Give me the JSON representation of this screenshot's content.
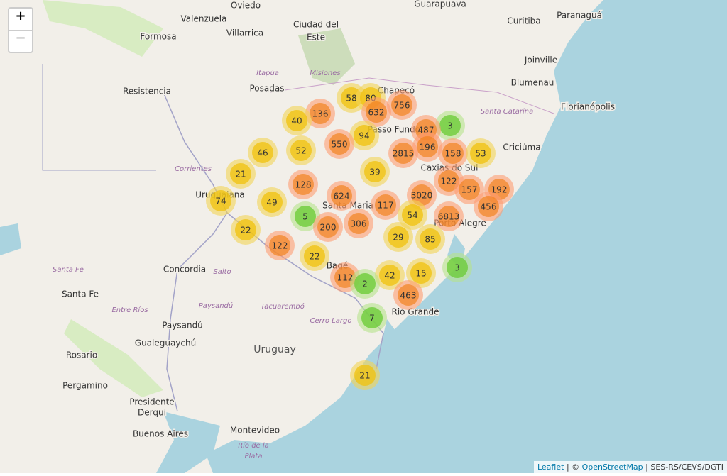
{
  "zoom": {
    "in": "+",
    "out": "−"
  },
  "places": [
    "Oviedo",
    "Guarapuava",
    "Paranaguá",
    "Valenzuela",
    "Ciudad del",
    "Este",
    "Curitiba",
    "Formosa",
    "Villarrica",
    "Joinville",
    "Blumenau",
    "Resistencia",
    "Posadas",
    "Chapecó",
    "Florianópolis",
    "Passo Fundo",
    "Criciúma",
    "Caxias do Sul",
    "Uruguaiana",
    "Santa Maria",
    "Porto Alegre",
    "Concordia",
    "Bagé",
    "Santa Fe",
    "Rio Grande",
    "Paysandú",
    "Gualeguaychú",
    "Rosario",
    "Pergamino",
    "Presidente",
    "Derqui",
    "Buenos Aires",
    "Montevideo"
  ],
  "regions": [
    "Itapúa",
    "Misiones",
    "Santa Catarina",
    "Corrientes",
    "Santa Fe",
    "Salto",
    "Entre Ríos",
    "Paysandú",
    "Tacuarembó",
    "Cerro Largo",
    "Río de la",
    "Plata"
  ],
  "countries": [
    "Uruguay"
  ],
  "clusters": [
    58,
    80,
    756,
    136,
    632,
    3,
    40,
    487,
    94,
    550,
    196,
    46,
    52,
    2815,
    158,
    53,
    39,
    21,
    122,
    128,
    3020,
    157,
    192,
    624,
    74,
    49,
    117,
    456,
    54,
    6813,
    5,
    200,
    306,
    22,
    29,
    85,
    122,
    22,
    3,
    112,
    42,
    15,
    2,
    463,
    7,
    21
  ],
  "attribution": {
    "leaflet": "Leaflet",
    "sep1": "| ©",
    "osm": "OpenStreetMap",
    "source": "| SES-RS/CEVS/DGTI"
  }
}
